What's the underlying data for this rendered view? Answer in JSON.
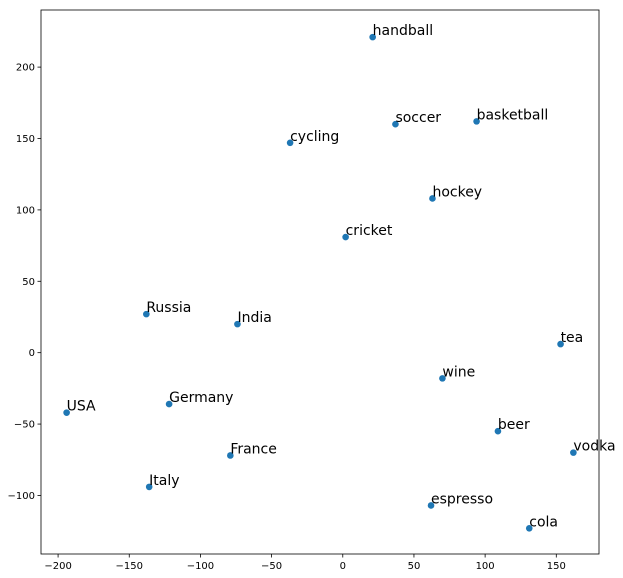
{
  "chart_data": {
    "type": "scatter",
    "title": "",
    "xlabel": "",
    "ylabel": "",
    "xlim": [
      -212,
      180
    ],
    "ylim": [
      -141,
      240
    ],
    "xticks": [
      -200,
      -150,
      -100,
      -50,
      0,
      50,
      100,
      150
    ],
    "yticks": [
      -100,
      -50,
      0,
      50,
      100,
      150,
      200
    ],
    "xtick_labels": [
      "−200",
      "−150",
      "−100",
      "−50",
      "0",
      "50",
      "100",
      "150"
    ],
    "ytick_labels": [
      "−100",
      "−50",
      "0",
      "50",
      "100",
      "150",
      "200"
    ],
    "grid": false,
    "marker_color": "#1f77b4",
    "points": [
      {
        "label": "handball",
        "x": 21,
        "y": 221
      },
      {
        "label": "soccer",
        "x": 37,
        "y": 160
      },
      {
        "label": "basketball",
        "x": 94,
        "y": 162
      },
      {
        "label": "cycling",
        "x": -37,
        "y": 147
      },
      {
        "label": "hockey",
        "x": 63,
        "y": 108
      },
      {
        "label": "cricket",
        "x": 2,
        "y": 81
      },
      {
        "label": "Russia",
        "x": -138,
        "y": 27
      },
      {
        "label": "India",
        "x": -74,
        "y": 20
      },
      {
        "label": "tea",
        "x": 153,
        "y": 6
      },
      {
        "label": "wine",
        "x": 70,
        "y": -18
      },
      {
        "label": "USA",
        "x": -194,
        "y": -42
      },
      {
        "label": "Germany",
        "x": -122,
        "y": -36
      },
      {
        "label": "beer",
        "x": 109,
        "y": -55
      },
      {
        "label": "vodka",
        "x": 162,
        "y": -70
      },
      {
        "label": "France",
        "x": -79,
        "y": -72
      },
      {
        "label": "Italy",
        "x": -136,
        "y": -94
      },
      {
        "label": "espresso",
        "x": 62,
        "y": -107
      },
      {
        "label": "cola",
        "x": 131,
        "y": -123
      }
    ]
  }
}
